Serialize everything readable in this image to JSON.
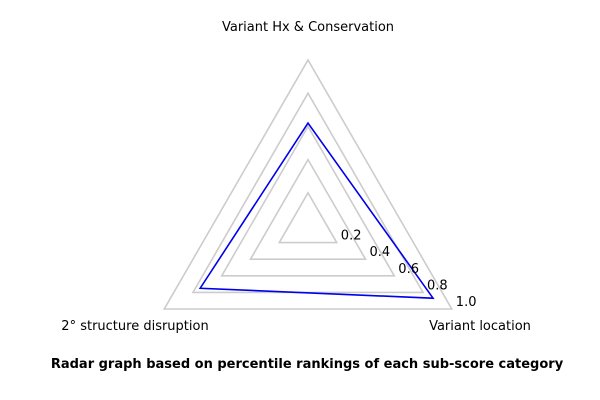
{
  "chart_data": {
    "type": "radar",
    "axes": [
      "Variant Hx & Conservation",
      "Variant location",
      "2° structure disruption"
    ],
    "series": [
      {
        "values": [
          0.62,
          0.87,
          0.75
        ],
        "color": "#0000ee"
      }
    ],
    "rings": [
      0.2,
      0.4,
      0.6,
      0.8,
      1.0
    ],
    "tick_labels": [
      "0.2",
      "0.4",
      "0.6",
      "0.8",
      "1.0"
    ],
    "ylim": [
      0,
      1.0
    ],
    "grid": true,
    "grid_color": "#cccccc",
    "caption": "Radar graph based on percentile rankings of each sub-score category"
  }
}
